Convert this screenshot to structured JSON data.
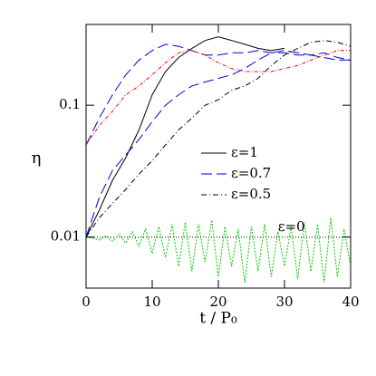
{
  "chart_data": {
    "type": "line",
    "x_label": "t / P₀",
    "y_label": "η",
    "xlim": [
      0,
      40
    ],
    "xticks": [
      0,
      10,
      20,
      30,
      40
    ],
    "ylim": [
      0.0041,
      0.41
    ],
    "yticks": [
      0.01,
      0.1
    ],
    "log_y": true,
    "series": [
      {
        "name": "ε=1",
        "color": "#000000",
        "dash": "solid",
        "x": [
          0,
          2,
          4,
          6,
          8,
          10,
          12,
          14,
          16,
          18,
          20,
          22,
          24,
          26,
          28,
          30
        ],
        "values": [
          0.01,
          0.016,
          0.027,
          0.04,
          0.065,
          0.12,
          0.18,
          0.23,
          0.27,
          0.31,
          0.33,
          0.31,
          0.29,
          0.27,
          0.26,
          0.27
        ]
      },
      {
        "name": "ε=0.7",
        "color": "#0000dd",
        "dash": "long",
        "x": [
          0,
          2,
          4,
          6,
          8,
          10,
          12,
          14,
          16,
          18,
          20,
          22,
          24,
          26,
          28,
          30,
          32,
          34,
          36,
          38,
          40
        ],
        "values": [
          0.01,
          0.02,
          0.032,
          0.042,
          0.055,
          0.075,
          0.1,
          0.12,
          0.14,
          0.15,
          0.16,
          0.17,
          0.19,
          0.22,
          0.25,
          0.26,
          0.25,
          0.24,
          0.25,
          0.23,
          0.22
        ]
      },
      {
        "name": "ε=0.5",
        "color": "#000000",
        "dash": "dashdot",
        "x": [
          0,
          2,
          4,
          6,
          8,
          10,
          12,
          14,
          16,
          18,
          20,
          22,
          24,
          26,
          28,
          30,
          32,
          34,
          36,
          38,
          40
        ],
        "values": [
          0.01,
          0.014,
          0.018,
          0.023,
          0.03,
          0.038,
          0.05,
          0.065,
          0.08,
          0.1,
          0.11,
          0.13,
          0.14,
          0.16,
          0.2,
          0.24,
          0.27,
          0.3,
          0.31,
          0.3,
          0.28
        ]
      },
      {
        "color": "#0000dd",
        "dash": "long",
        "x": [
          0,
          2,
          4,
          6,
          8,
          10,
          12,
          14,
          16,
          18,
          20,
          22,
          24,
          26,
          28,
          30,
          32,
          34,
          36,
          38,
          40
        ],
        "values": [
          0.05,
          0.08,
          0.12,
          0.17,
          0.22,
          0.26,
          0.29,
          0.28,
          0.26,
          0.24,
          0.24,
          0.25,
          0.25,
          0.26,
          0.25,
          0.25,
          0.24,
          0.24,
          0.23,
          0.22,
          0.22
        ]
      },
      {
        "color": "#ff0000",
        "dash": "reddot",
        "x": [
          0,
          2,
          4,
          6,
          8,
          10,
          12,
          14,
          16,
          18,
          20,
          22,
          24,
          26,
          28,
          30,
          32,
          34,
          36,
          38,
          40
        ],
        "values": [
          0.05,
          0.07,
          0.09,
          0.12,
          0.14,
          0.17,
          0.21,
          0.25,
          0.26,
          0.24,
          0.21,
          0.19,
          0.18,
          0.18,
          0.18,
          0.19,
          0.2,
          0.22,
          0.24,
          0.26,
          0.26
        ]
      },
      {
        "color": "#000000",
        "dash": "dot",
        "x": [
          0,
          40
        ],
        "values": [
          0.01,
          0.01
        ]
      },
      {
        "color": "#00cc00",
        "dash": "green",
        "x": [
          0,
          1,
          2,
          3,
          4,
          5,
          6,
          7,
          8,
          9,
          10,
          11,
          12,
          13,
          14,
          15,
          16,
          17,
          18,
          19,
          20,
          21,
          22,
          23,
          24,
          25,
          26,
          27,
          28,
          29,
          30,
          31,
          32,
          33,
          34,
          35,
          36,
          37,
          38,
          39,
          40
        ],
        "values": [
          0.01,
          0.0098,
          0.0095,
          0.0102,
          0.0093,
          0.0105,
          0.009,
          0.011,
          0.0085,
          0.0115,
          0.0075,
          0.012,
          0.007,
          0.0125,
          0.006,
          0.013,
          0.0055,
          0.0125,
          0.0065,
          0.0135,
          0.005,
          0.012,
          0.006,
          0.0115,
          0.0045,
          0.012,
          0.0055,
          0.0125,
          0.005,
          0.011,
          0.006,
          0.012,
          0.0048,
          0.013,
          0.0055,
          0.0125,
          0.0045,
          0.014,
          0.005,
          0.0115,
          0.006
        ]
      }
    ],
    "annotations": [
      {
        "text": "ε=0",
        "x": 29,
        "y": 0.0118
      }
    ]
  }
}
